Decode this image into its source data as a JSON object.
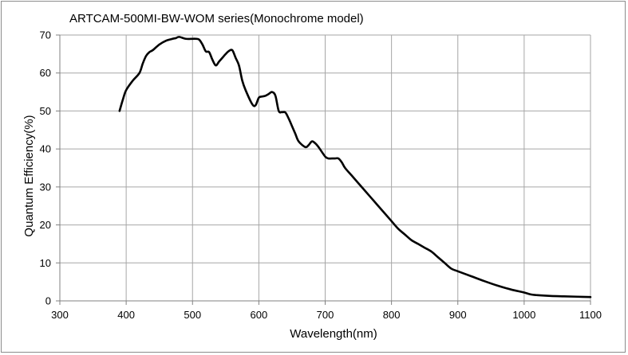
{
  "chart_data": {
    "type": "line",
    "title": "ARTCAM-500MI-BW-WOM series(Monochrome model)",
    "xlabel": "Wavelength(nm)",
    "ylabel": "Quantum Efficiency(%)",
    "xlim": [
      300,
      1100
    ],
    "ylim": [
      0,
      70
    ],
    "xticks": [
      300,
      400,
      500,
      600,
      700,
      800,
      900,
      1000,
      1100
    ],
    "yticks": [
      0,
      10,
      20,
      30,
      40,
      50,
      60,
      70
    ],
    "grid": true,
    "legend": "none",
    "series": [
      {
        "name": "Quantum Efficiency",
        "color": "#000000",
        "x": [
          390,
          395,
          400,
          410,
          420,
          425,
          430,
          435,
          440,
          450,
          460,
          470,
          475,
          480,
          490,
          500,
          505,
          510,
          515,
          520,
          525,
          530,
          535,
          540,
          545,
          550,
          555,
          560,
          565,
          570,
          575,
          580,
          590,
          595,
          600,
          605,
          610,
          615,
          620,
          625,
          630,
          635,
          640,
          645,
          650,
          655,
          660,
          670,
          675,
          680,
          685,
          690,
          700,
          705,
          710,
          715,
          720,
          725,
          730,
          740,
          750,
          760,
          770,
          780,
          790,
          800,
          810,
          820,
          830,
          840,
          850,
          860,
          870,
          880,
          890,
          900,
          920,
          940,
          960,
          980,
          1000,
          1010,
          1020,
          1040,
          1060,
          1080,
          1100
        ],
        "values": [
          50,
          53,
          55.5,
          58,
          60,
          62.5,
          64.5,
          65.5,
          66,
          67.5,
          68.5,
          69,
          69.2,
          69.5,
          69,
          69,
          69,
          68.8,
          67.5,
          65.7,
          65.5,
          63.5,
          62,
          63,
          64,
          65,
          65.8,
          66,
          64,
          62,
          58,
          55.5,
          51.8,
          51.5,
          53.5,
          53.8,
          54,
          54.5,
          55,
          54,
          50,
          49.7,
          49.6,
          48,
          46,
          44,
          42,
          40.5,
          41,
          42,
          41.5,
          40.5,
          38,
          37.5,
          37.5,
          37.5,
          37.5,
          36.5,
          35,
          33,
          31,
          29,
          27,
          25,
          23,
          21,
          19,
          17.5,
          16,
          15,
          14,
          13,
          11.5,
          10,
          8.5,
          7.8,
          6.5,
          5.2,
          4,
          3,
          2.2,
          1.7,
          1.5,
          1.3,
          1.2,
          1.1,
          1.0
        ]
      }
    ]
  }
}
